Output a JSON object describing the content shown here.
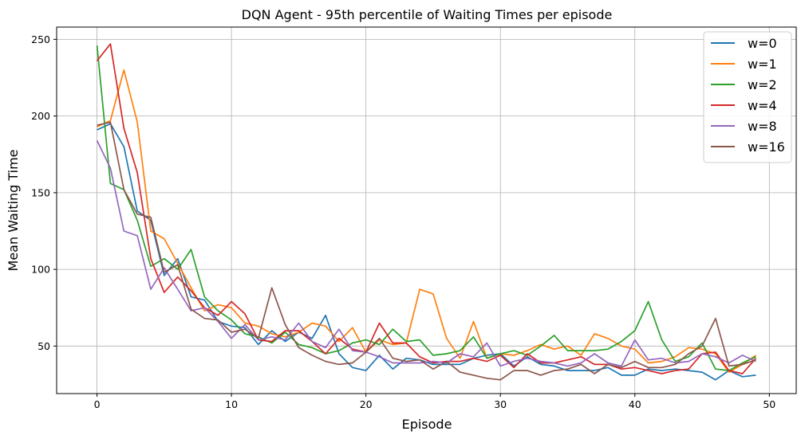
{
  "chart_data": {
    "type": "line",
    "title": "DQN Agent - 95th percentile of Waiting Times per episode",
    "xlabel": "Episode",
    "ylabel": "Mean Waiting Time",
    "xlim": [
      -3,
      52
    ],
    "ylim": [
      19,
      258
    ],
    "xticks": [
      0,
      10,
      20,
      30,
      40,
      50
    ],
    "yticks": [
      50,
      100,
      150,
      200,
      250
    ],
    "grid": true,
    "legend_position": "top-right",
    "x": [
      0,
      1,
      2,
      3,
      4,
      5,
      6,
      7,
      8,
      9,
      10,
      11,
      12,
      13,
      14,
      15,
      16,
      17,
      18,
      19,
      20,
      21,
      22,
      23,
      24,
      25,
      26,
      27,
      28,
      29,
      30,
      31,
      32,
      33,
      34,
      35,
      36,
      37,
      38,
      39,
      40,
      41,
      42,
      43,
      44,
      45,
      46,
      47,
      48,
      49
    ],
    "series": [
      {
        "name": "w=0",
        "color": "#1f77b4",
        "values": [
          191,
          195,
          180,
          138,
          132,
          96,
          107,
          82,
          80,
          66,
          63,
          62,
          51,
          60,
          53,
          59,
          55,
          70,
          45,
          36,
          34,
          44,
          35,
          42,
          41,
          38,
          38,
          38,
          42,
          44,
          45,
          37,
          43,
          38,
          37,
          34,
          34,
          34,
          36,
          31,
          31,
          35,
          34,
          35,
          34,
          33,
          28,
          34,
          30,
          31
        ]
      },
      {
        "name": "w=1",
        "color": "#ff7f0e",
        "values": [
          193,
          197,
          230,
          196,
          125,
          120,
          104,
          88,
          73,
          77,
          75,
          65,
          63,
          58,
          56,
          59,
          65,
          63,
          53,
          62,
          46,
          54,
          51,
          52,
          87,
          84,
          55,
          42,
          66,
          42,
          45,
          44,
          47,
          51,
          48,
          50,
          44,
          58,
          55,
          50,
          48,
          39,
          40,
          43,
          49,
          48,
          45,
          33,
          38,
          44
        ]
      },
      {
        "name": "w=2",
        "color": "#2ca02c",
        "values": [
          246,
          156,
          152,
          132,
          102,
          107,
          100,
          113,
          82,
          73,
          67,
          58,
          56,
          52,
          59,
          51,
          49,
          45,
          47,
          52,
          54,
          51,
          61,
          53,
          54,
          44,
          45,
          47,
          56,
          42,
          45,
          47,
          44,
          50,
          57,
          47,
          47,
          47,
          48,
          53,
          60,
          79,
          54,
          40,
          43,
          52,
          35,
          34,
          39,
          43
        ]
      },
      {
        "name": "w=4",
        "color": "#d62728",
        "values": [
          236,
          247,
          192,
          163,
          107,
          85,
          95,
          86,
          75,
          70,
          79,
          71,
          54,
          53,
          60,
          60,
          53,
          45,
          55,
          48,
          46,
          65,
          52,
          52,
          43,
          39,
          40,
          40,
          42,
          40,
          44,
          36,
          45,
          39,
          39,
          41,
          43,
          38,
          38,
          35,
          36,
          34,
          32,
          34,
          35,
          45,
          46,
          34,
          32,
          42
        ]
      },
      {
        "name": "w=8",
        "color": "#9467bd",
        "values": [
          184,
          166,
          125,
          122,
          87,
          101,
          87,
          73,
          75,
          66,
          55,
          64,
          54,
          56,
          54,
          65,
          53,
          49,
          61,
          47,
          46,
          43,
          39,
          39,
          39,
          40,
          39,
          45,
          43,
          52,
          37,
          40,
          42,
          40,
          39,
          37,
          39,
          45,
          39,
          37,
          54,
          41,
          42,
          39,
          40,
          45,
          43,
          39,
          44,
          40
        ]
      },
      {
        "name": "w=16",
        "color": "#8c564b",
        "values": [
          194,
          196,
          152,
          136,
          134,
          98,
          103,
          74,
          68,
          67,
          59,
          61,
          55,
          88,
          64,
          49,
          44,
          40,
          38,
          39,
          46,
          55,
          42,
          40,
          41,
          35,
          40,
          33,
          31,
          29,
          28,
          34,
          34,
          31,
          34,
          35,
          38,
          32,
          38,
          36,
          40,
          36,
          36,
          38,
          45,
          50,
          68,
          37,
          38,
          41
        ]
      }
    ]
  }
}
